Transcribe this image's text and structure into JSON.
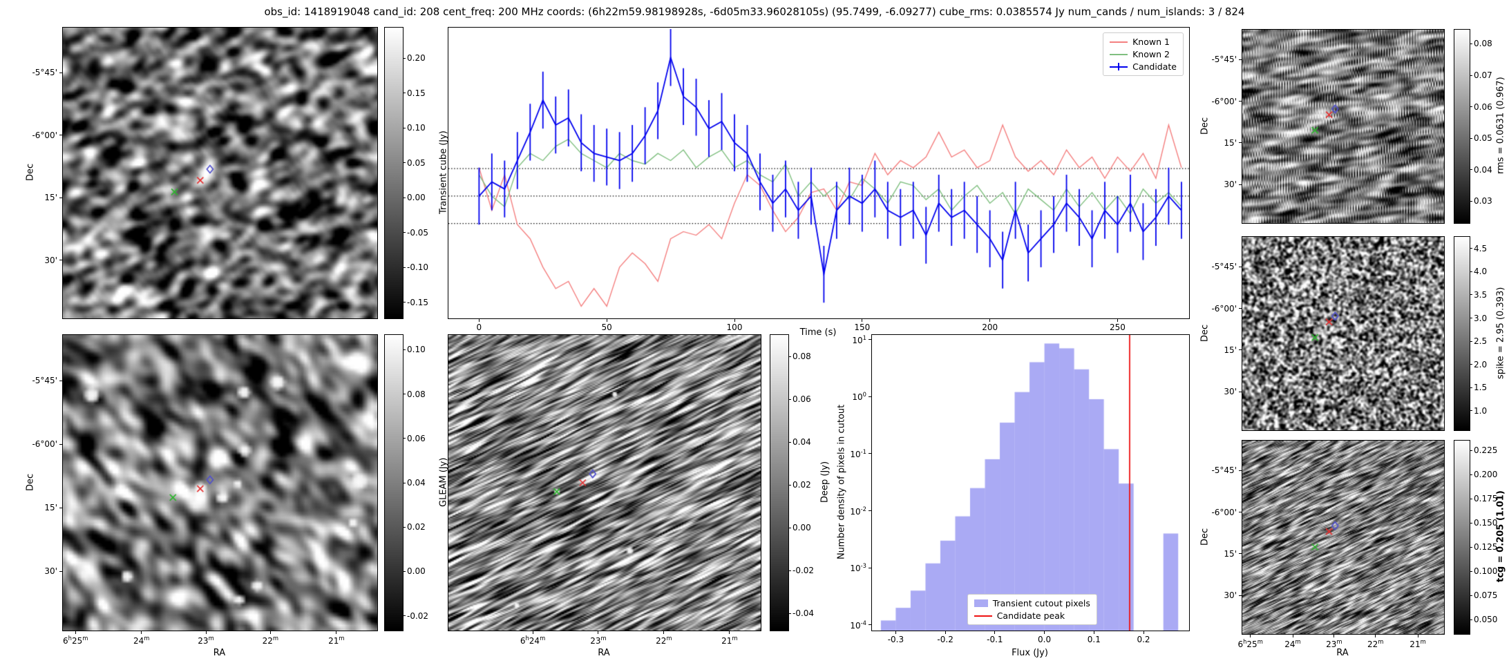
{
  "title": "obs_id: 1418919048 cand_id: 208 cent_freq: 200 MHz coords: (6h22m59.98198928s, -6d05m33.96028105s) (95.7499, -6.09277) cube_rms: 0.0385574 Jy num_cands / num_islands: 3 / 824",
  "chart_data": [
    {
      "id": "lightcurve",
      "type": "line",
      "xlabel": "Time (s)",
      "xlim": [
        -12,
        278
      ],
      "ylim": [
        -0.172,
        0.237
      ],
      "xticks": [
        0,
        50,
        100,
        150,
        200,
        250
      ],
      "hlines": [
        0.0386,
        0,
        -0.0386
      ],
      "legend_position": "upper right",
      "x": [
        0,
        5,
        10,
        15,
        20,
        25,
        30,
        35,
        40,
        45,
        50,
        55,
        60,
        65,
        70,
        75,
        80,
        85,
        90,
        95,
        100,
        105,
        110,
        115,
        120,
        125,
        130,
        135,
        140,
        145,
        150,
        155,
        160,
        165,
        170,
        175,
        180,
        185,
        190,
        195,
        200,
        205,
        210,
        215,
        220,
        225,
        230,
        235,
        240,
        245,
        250,
        255,
        260,
        265,
        270,
        275
      ],
      "series": [
        {
          "name": "Known 1",
          "color": "#f47f7f",
          "values": [
            0.04,
            -0.02,
            0.03,
            -0.04,
            -0.06,
            -0.1,
            -0.13,
            -0.12,
            -0.155,
            -0.13,
            -0.155,
            -0.1,
            -0.08,
            -0.095,
            -0.12,
            -0.06,
            -0.05,
            -0.055,
            -0.04,
            -0.06,
            -0.01,
            0.03,
            0.015,
            -0.02,
            -0.05,
            -0.03,
            0.005,
            0.01,
            -0.02,
            0.02,
            0.015,
            0.06,
            0.03,
            0.05,
            0.04,
            0.055,
            0.09,
            0.055,
            0.065,
            0.04,
            0.05,
            0.1,
            0.055,
            0.035,
            0.05,
            0.03,
            0.065,
            0.04,
            0.055,
            0.025,
            0.055,
            0.035,
            0.06,
            0.025,
            0.1,
            0.04
          ]
        },
        {
          "name": "Known 2",
          "color": "#7fbf7f",
          "values": [
            0.03,
            0.0,
            -0.015,
            0.04,
            0.06,
            0.05,
            0.07,
            0.08,
            0.06,
            0.05,
            0.04,
            0.06,
            0.05,
            0.045,
            0.06,
            0.05,
            0.065,
            0.04,
            0.055,
            0.065,
            0.04,
            0.05,
            0.03,
            0.02,
            0.045,
            0.0,
            0.02,
            0.0,
            0.015,
            -0.005,
            0.025,
            0.01,
            -0.01,
            0.02,
            0.015,
            -0.005,
            0.01,
            -0.02,
            0.0,
            0.015,
            -0.01,
            0.005,
            -0.025,
            0.01,
            -0.005,
            -0.02,
            0.01,
            -0.015,
            0.005,
            -0.02,
            0.0,
            -0.025,
            0.01,
            -0.01,
            0.005,
            -0.015
          ]
        },
        {
          "name": "Candidate",
          "color": "#0000ee",
          "yerr": 0.04,
          "values": [
            0.0,
            0.02,
            0.01,
            0.05,
            0.09,
            0.135,
            0.1,
            0.11,
            0.075,
            0.06,
            0.055,
            0.05,
            0.06,
            0.085,
            0.12,
            0.195,
            0.14,
            0.125,
            0.095,
            0.105,
            0.075,
            0.06,
            0.02,
            -0.01,
            0.01,
            -0.02,
            0.0,
            -0.11,
            -0.02,
            0.0,
            -0.01,
            0.01,
            -0.02,
            -0.03,
            -0.02,
            -0.055,
            -0.01,
            -0.03,
            -0.02,
            -0.04,
            -0.06,
            -0.09,
            -0.02,
            -0.08,
            -0.06,
            -0.04,
            -0.01,
            -0.03,
            -0.06,
            -0.02,
            -0.04,
            -0.01,
            -0.05,
            -0.03,
            0.0,
            -0.02
          ]
        }
      ]
    },
    {
      "id": "flux-histogram",
      "type": "bar",
      "xlabel": "Flux (Jy)",
      "ylabel": "Number density of pixels in cutout",
      "yscale": "log",
      "xlim": [
        -0.348,
        0.292
      ],
      "ylim": [
        8e-05,
        12
      ],
      "xticks": [
        -0.3,
        -0.2,
        -0.1,
        0,
        0.1,
        0.2
      ],
      "ytick_exponents": [
        1,
        0,
        -1,
        -2,
        -3,
        -4
      ],
      "bin_edges": [
        -0.33,
        -0.3,
        -0.27,
        -0.24,
        -0.21,
        -0.18,
        -0.15,
        -0.12,
        -0.09,
        -0.06,
        -0.03,
        0,
        0.03,
        0.06,
        0.09,
        0.12,
        0.15,
        0.18,
        0.21,
        0.24,
        0.27
      ],
      "densities": [
        0.00012,
        0.0002,
        0.0004,
        0.0012,
        0.003,
        0.008,
        0.025,
        0.08,
        0.35,
        1.2,
        4,
        8.5,
        7,
        3,
        0.9,
        0.12,
        0.03,
        0,
        0,
        0.004
      ],
      "candidate_peak": 0.172,
      "bar_color": "rgba(100,100,235,0.55)",
      "line_color": "#ee1111",
      "legend": [
        "Transient cutout pixels",
        "Candidate peak"
      ]
    },
    {
      "id": "transient-cube",
      "type": "heatmap",
      "ylabel": "Dec",
      "colorbar_label": "Transient cube (Jy)",
      "colorbar_range": [
        -0.173,
        0.244
      ],
      "colorbar_ticks": [
        0.2,
        0.15,
        0.1,
        0.05,
        0,
        -0.05,
        -0.1,
        -0.15
      ],
      "tick_decimals": 2,
      "yticks": {
        "labels": [
          "-5°45'",
          "-6°00'",
          "15'",
          "30'"
        ],
        "fracs": [
          0.155,
          0.37,
          0.585,
          0.8
        ]
      },
      "noise": {
        "seed": 11,
        "res": [
          132,
          122
        ],
        "passes": [
          [
            1,
            0,
            2
          ],
          [
            0,
            1,
            2
          ],
          [
            1,
            1,
            1
          ],
          [
            2,
            -1,
            1
          ]
        ],
        "contrast": 1.8,
        "brightness": 0,
        "sources": 0
      },
      "markers": [
        {
          "type": "x",
          "color": "#2db52d",
          "fx": 0.355,
          "fy": 0.565
        },
        {
          "type": "x",
          "color": "#e53030",
          "fx": 0.437,
          "fy": 0.525
        },
        {
          "type": "diamond",
          "color": "#5050cc",
          "fx": 0.468,
          "fy": 0.487
        }
      ]
    },
    {
      "id": "gleam",
      "type": "heatmap",
      "ylabel": "Dec",
      "xlabel": "RA",
      "colorbar_label": "GLEAM (Jy)",
      "colorbar_range": [
        -0.0267,
        0.1067
      ],
      "colorbar_ticks": [
        0.1,
        0.08,
        0.06,
        0.04,
        0.02,
        0,
        -0.02
      ],
      "tick_decimals": 2,
      "yticks": {
        "labels": [
          "-5°45'",
          "-6°00'",
          "15'",
          "30'"
        ],
        "fracs": [
          0.155,
          0.37,
          0.585,
          0.8
        ]
      },
      "xticks_ra": {
        "labels": [
          "6h25m",
          "24m",
          "23m",
          "22m",
          "21m"
        ],
        "fracs": [
          0.04,
          0.25,
          0.455,
          0.66,
          0.87
        ]
      },
      "noise": {
        "seed": 23,
        "res": [
          90,
          85
        ],
        "passes": [
          [
            1,
            0,
            3
          ],
          [
            0,
            1,
            3
          ],
          [
            1,
            1,
            2
          ]
        ],
        "contrast": 1.7,
        "brightness": -0.04,
        "sources": 12,
        "fixed_sources": [
          [
            0.437,
            0.52,
            2.2
          ]
        ]
      },
      "markers": [
        {
          "type": "x",
          "color": "#2db52d",
          "fx": 0.35,
          "fy": 0.55
        },
        {
          "type": "x",
          "color": "#e53030",
          "fx": 0.437,
          "fy": 0.52
        },
        {
          "type": "diamond",
          "color": "#5050cc",
          "fx": 0.468,
          "fy": 0.49
        }
      ]
    },
    {
      "id": "deep",
      "type": "heatmap",
      "xlabel": "RA",
      "colorbar_label": "Deep (Jy)",
      "colorbar_range": [
        -0.048,
        0.09
      ],
      "colorbar_ticks": [
        0.08,
        0.06,
        0.04,
        0.02,
        0,
        -0.02,
        -0.04
      ],
      "tick_decimals": 2,
      "xticks_ra": {
        "labels": [
          "6h24m",
          "23m",
          "22m",
          "21m"
        ],
        "fracs": [
          0.27,
          0.48,
          0.69,
          0.9
        ]
      },
      "noise": {
        "seed": 37,
        "res": [
          230,
          218
        ],
        "passes": [
          [
            2,
            -1,
            12
          ],
          [
            1,
            0,
            2
          ]
        ],
        "contrast": 2.2,
        "brightness": -0.02,
        "sources": 3,
        "fixed_sources": [
          [
            0.347,
            0.53,
            2.5
          ]
        ]
      },
      "markers": [
        {
          "type": "x",
          "color": "#2db52d",
          "fx": 0.347,
          "fy": 0.53
        },
        {
          "type": "x",
          "color": "#e53030",
          "fx": 0.43,
          "fy": 0.5
        },
        {
          "type": "diamond",
          "color": "#5050cc",
          "fx": 0.462,
          "fy": 0.47
        }
      ]
    },
    {
      "id": "rms",
      "type": "heatmap",
      "ylabel": "Dec",
      "colorbar_label": "rms = 0.0631 (0.967)",
      "colorbar_range": [
        0.023,
        0.0845
      ],
      "colorbar_ticks": [
        0.08,
        0.07,
        0.06,
        0.05,
        0.04,
        0.03
      ],
      "tick_decimals": 2,
      "yticks": {
        "labels": [
          "-5°45'",
          "-6°00'",
          "15'",
          "30'"
        ],
        "fracs": [
          0.155,
          0.37,
          0.585,
          0.8
        ]
      },
      "noise": {
        "seed": 51,
        "res": [
          150,
          144
        ],
        "passes": [
          [
            2,
            0,
            6
          ],
          [
            2,
            -1,
            2
          ],
          [
            0,
            1,
            1
          ]
        ],
        "contrast": 2.0,
        "brightness": 0,
        "sources": 0
      },
      "markers": [
        {
          "type": "x",
          "color": "#2db52d",
          "fx": 0.36,
          "fy": 0.52
        },
        {
          "type": "x",
          "color": "#e53030",
          "fx": 0.43,
          "fy": 0.44
        },
        {
          "type": "diamond",
          "color": "#5050cc",
          "fx": 0.46,
          "fy": 0.41
        }
      ]
    },
    {
      "id": "spike",
      "type": "heatmap",
      "ylabel": "Dec",
      "colorbar_label": "spike = 2.95 (0.393)",
      "colorbar_range": [
        0.58,
        4.75
      ],
      "colorbar_ticks": [
        4.5,
        4,
        3.5,
        3,
        2.5,
        2,
        1.5,
        1
      ],
      "tick_decimals": 1,
      "yticks": {
        "labels": [
          "-5°45'",
          "-6°00'",
          "15'",
          "30'"
        ],
        "fracs": [
          0.155,
          0.37,
          0.585,
          0.8
        ]
      },
      "noise": {
        "seed": 67,
        "res": [
          160,
          154
        ],
        "passes": [
          [
            1,
            0,
            1
          ],
          [
            0,
            1,
            1
          ]
        ],
        "contrast": 2.2,
        "brightness": 0,
        "sources": 0
      },
      "markers": [
        {
          "type": "x",
          "color": "#2db52d",
          "fx": 0.36,
          "fy": 0.52
        },
        {
          "type": "x",
          "color": "#e53030",
          "fx": 0.43,
          "fy": 0.44
        },
        {
          "type": "diamond",
          "color": "#5050cc",
          "fx": 0.46,
          "fy": 0.41
        }
      ]
    },
    {
      "id": "tcg",
      "type": "heatmap",
      "ylabel": "Dec",
      "xlabel": "RA",
      "colorbar_label": "tcg = 0.205 (1.01)",
      "colorbar_bold": true,
      "colorbar_range": [
        0.035,
        0.235
      ],
      "colorbar_ticks": [
        0.225,
        0.2,
        0.175,
        0.15,
        0.125,
        0.1,
        0.075,
        0.05
      ],
      "tick_decimals": 3,
      "yticks": {
        "labels": [
          "-5°45'",
          "-6°00'",
          "15'",
          "30'"
        ],
        "fracs": [
          0.155,
          0.37,
          0.585,
          0.8
        ]
      },
      "xticks_ra": {
        "labels": [
          "6h25m",
          "24m",
          "23m",
          "22m",
          "21m"
        ],
        "fracs": [
          0.04,
          0.25,
          0.455,
          0.66,
          0.87
        ]
      },
      "noise": {
        "seed": 83,
        "res": [
          200,
          193
        ],
        "passes": [
          [
            2,
            -1,
            6
          ],
          [
            1,
            0,
            1
          ]
        ],
        "contrast": 2.0,
        "brightness": 0,
        "sources": 0
      },
      "markers": [
        {
          "type": "x",
          "color": "#2db52d",
          "fx": 0.36,
          "fy": 0.55
        },
        {
          "type": "x",
          "color": "#e53030",
          "fx": 0.43,
          "fy": 0.47
        },
        {
          "type": "diamond",
          "color": "#5050cc",
          "fx": 0.46,
          "fy": 0.44
        }
      ]
    }
  ]
}
